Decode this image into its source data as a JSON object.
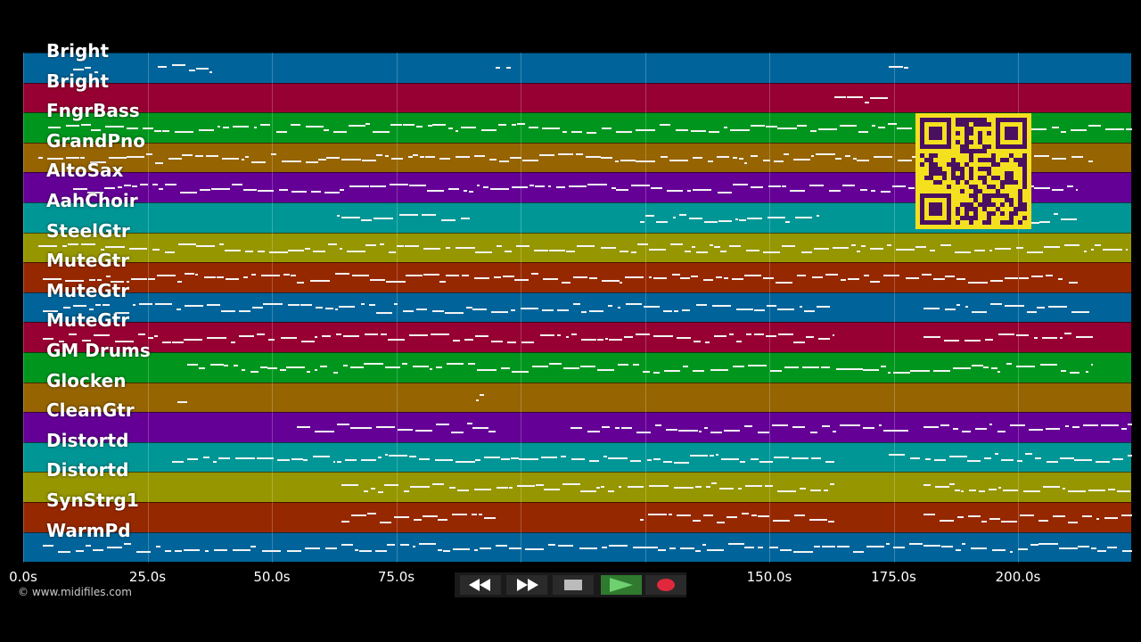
{
  "tracks": [
    {
      "name": "Bright",
      "color": "#00649a"
    },
    {
      "name": "Bright",
      "color": "#960032"
    },
    {
      "name": "FngrBass",
      "color": "#00961e"
    },
    {
      "name": "GrandPno",
      "color": "#966400"
    },
    {
      "name": "AltoSax",
      "color": "#640096"
    },
    {
      "name": "AahChoir",
      "color": "#009696"
    },
    {
      "name": "SteelGtr",
      "color": "#969600"
    },
    {
      "name": "MuteGtr",
      "color": "#962800"
    },
    {
      "name": "MuteGtr",
      "color": "#00649a"
    },
    {
      "name": "MuteGtr",
      "color": "#960032"
    },
    {
      "name": "GM Drums",
      "color": "#00961e"
    },
    {
      "name": "Glocken",
      "color": "#966400"
    },
    {
      "name": "CleanGtr",
      "color": "#640096"
    },
    {
      "name": "Distortd",
      "color": "#009696"
    },
    {
      "name": "Distortd",
      "color": "#969600"
    },
    {
      "name": "SynStrg1",
      "color": "#962800"
    },
    {
      "name": "WarmPd",
      "color": "#00649a"
    }
  ],
  "timeline": {
    "ticks": [
      "0.0s",
      "25.0s",
      "50.0s",
      "75.0s",
      "150.0s",
      "175.0s",
      "200.0s"
    ],
    "tick_seconds": [
      0,
      25,
      50,
      75,
      150,
      175,
      200
    ],
    "max_seconds": 223
  },
  "copyright": "© www.midifiles.com",
  "transport": {
    "rewind_icon": "rewind-icon",
    "fastforward_icon": "fast-forward-icon",
    "stop_icon": "stop-icon",
    "play_icon": "play-icon",
    "record_icon": "record-icon",
    "record_color": "#e0283c",
    "play_color": "#3fa83f"
  },
  "qr_icon": "qr-code-icon"
}
